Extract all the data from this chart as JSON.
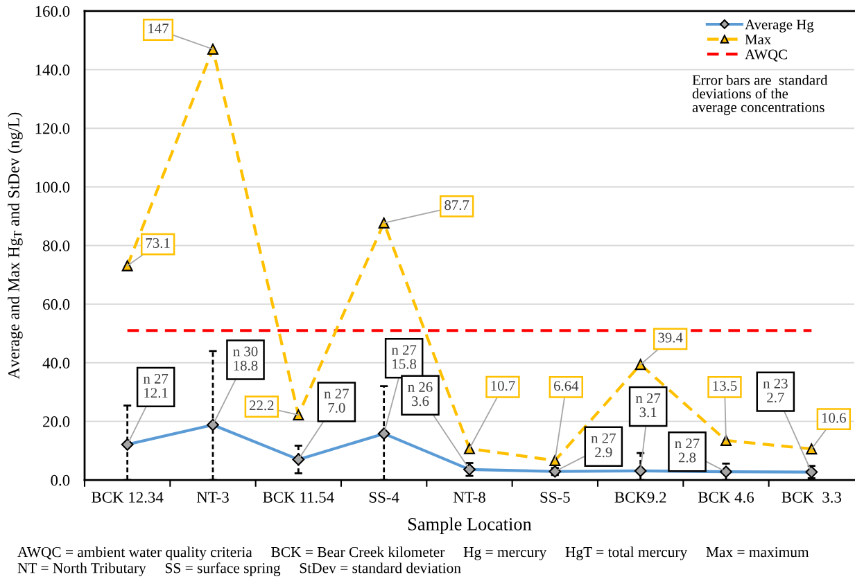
{
  "chart_data": {
    "type": "line",
    "xlabel": "Sample Location",
    "ylabel": "Average and Max Hg$_{T}$ and StDev (ng/L)",
    "categories": [
      "BCK 12.34",
      "NT-3",
      "BCK 11.54",
      "SS-4",
      "NT-8",
      "SS-5",
      "BCK9.2",
      "BCK 4.6",
      "BCK  3.3"
    ],
    "series": [
      {
        "name": "Average Hg",
        "color": "#5b9bd5",
        "marker": "diamond",
        "line_style": "solid",
        "values": [
          12.1,
          18.8,
          7.0,
          15.8,
          3.6,
          2.9,
          3.1,
          2.8,
          2.7
        ],
        "errors": [
          [
            0,
            25.4
          ],
          [
            0,
            44.0
          ],
          4.7,
          [
            0,
            32.0
          ],
          2.2,
          1.2,
          [
            0,
            9.2
          ],
          2.8,
          2.1
        ],
        "value_labels": [
          "n 27\n12.1",
          "n 30\n18.8",
          "n 27\n7.0",
          "n 27\n15.8",
          "n 26\n3.6",
          "n 27\n2.9",
          "n 27\n3.1",
          "n 27\n2.8",
          "n 23\n2.7"
        ]
      },
      {
        "name": "Max",
        "color": "#ffc000",
        "marker": "triangle",
        "line_style": "dashed",
        "values": [
          73.1,
          147,
          22.2,
          87.7,
          10.7,
          6.64,
          39.4,
          13.5,
          10.6
        ],
        "value_labels": [
          "73.1",
          "147",
          "22.2",
          "87.7",
          "10.7",
          "6.64",
          "39.4",
          "13.5",
          "10.6"
        ]
      }
    ],
    "ref_lines": [
      {
        "axis": "y",
        "value": 51,
        "label": "AWQC",
        "color": "#ff0000",
        "line_style": "dashed"
      }
    ],
    "ylim": [
      0,
      160
    ],
    "yticks": [
      {
        "value": 0,
        "label": "0.0"
      },
      {
        "value": 20,
        "label": "20.0"
      },
      {
        "value": 40,
        "label": "40.0"
      },
      {
        "value": 60,
        "label": "60.0"
      },
      {
        "value": 80,
        "label": "80.0"
      },
      {
        "value": 100,
        "label": "100.0"
      },
      {
        "value": 120,
        "label": "120.0"
      },
      {
        "value": 140,
        "label": "140.0"
      },
      {
        "value": 160,
        "label": "160.0"
      }
    ],
    "grid": "y",
    "legend": "top right",
    "annotations": [
      "Error bars are  standard deviations of the average concentrations",
      "AWQC = ambient water quality criteria     BCK = Bear Creek kilometer     Hg = mercury     HgT = total mercury     Max = maximum",
      "NT = North Tributary     SS = surface spring     StDev = standard deviation"
    ]
  }
}
